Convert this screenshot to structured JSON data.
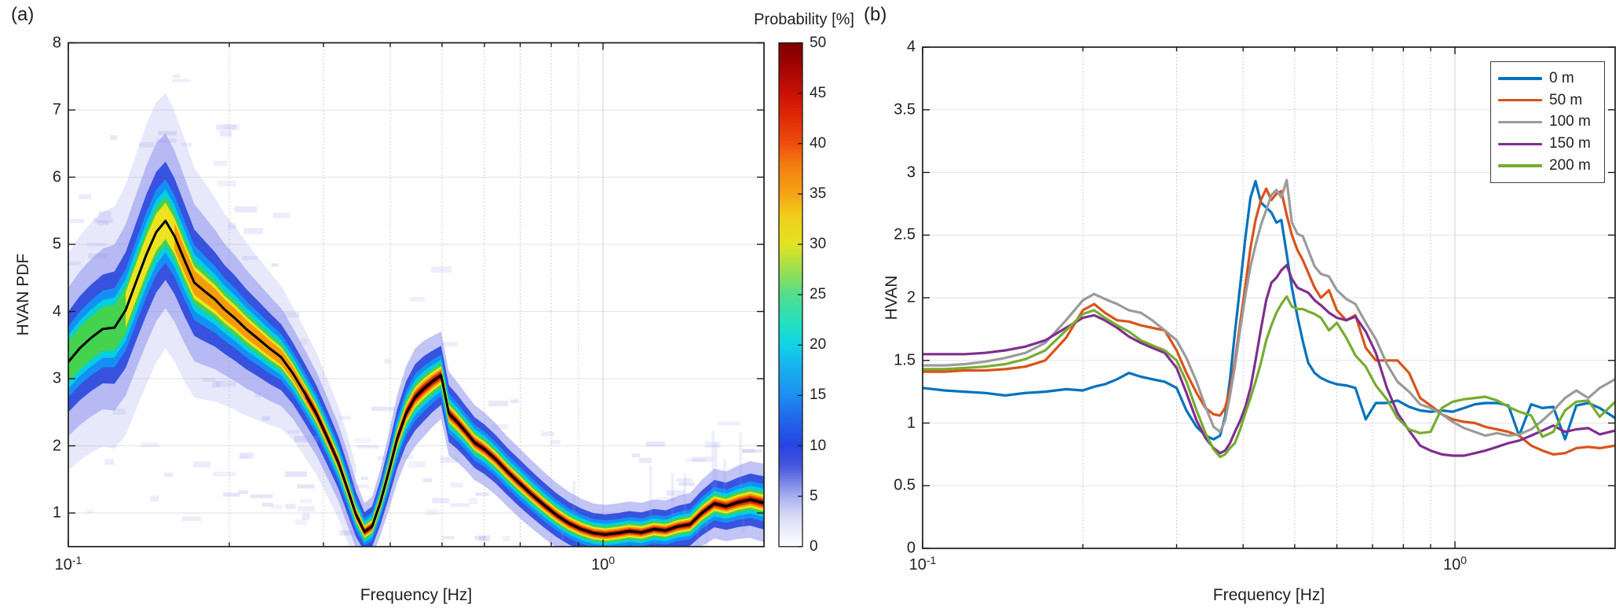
{
  "chart_data": [
    {
      "id": "a",
      "panel_label": "(a)",
      "type": "heatmap",
      "xlabel": "Frequency [Hz]",
      "ylabel": "HVAN PDF",
      "xscale": "log",
      "xlim": [
        0.1,
        2
      ],
      "ylim": [
        0.5,
        8
      ],
      "yticks": [
        1,
        2,
        3,
        4,
        5,
        6,
        7,
        8
      ],
      "xticks_major": [
        0.1,
        1
      ],
      "xticks_minor": [
        0.2,
        0.3,
        0.4,
        0.5,
        0.6,
        0.7,
        0.8,
        0.9
      ],
      "xtick_labels": [
        {
          "base": "10",
          "exp": "-1",
          "at": 0.1
        },
        {
          "base": "10",
          "exp": "0",
          "at": 1
        }
      ],
      "grid": true,
      "colorbar": {
        "title": "Probability [%]",
        "min": 0,
        "max": 50,
        "ticks": [
          0,
          5,
          10,
          15,
          20,
          25,
          30,
          35,
          40,
          45,
          50
        ],
        "gradient": [
          [
            0,
            "#ffffff"
          ],
          [
            3,
            "#d9dcf6"
          ],
          [
            5,
            "#a7aeee"
          ],
          [
            8,
            "#4656dd"
          ],
          [
            10,
            "#2743e2"
          ],
          [
            13,
            "#1f6ceb"
          ],
          [
            15,
            "#1e8ef2"
          ],
          [
            18,
            "#17b4ec"
          ],
          [
            20,
            "#10d4e6"
          ],
          [
            22,
            "#21dfc2"
          ],
          [
            25,
            "#53dd8d"
          ],
          [
            27,
            "#8ede5a"
          ],
          [
            30,
            "#e3e321"
          ],
          [
            33,
            "#f2cb1b"
          ],
          [
            35,
            "#f4a315"
          ],
          [
            38,
            "#f37b10"
          ],
          [
            40,
            "#ee4e0c"
          ],
          [
            43,
            "#dd2506"
          ],
          [
            45,
            "#c91105"
          ],
          [
            48,
            "#9c0303"
          ],
          [
            50,
            "#7c0000"
          ]
        ]
      },
      "median_curve": {
        "color": "#000000",
        "f": [
          0.1,
          0.105,
          0.11,
          0.116,
          0.122,
          0.128,
          0.134,
          0.14,
          0.146,
          0.152,
          0.158,
          0.165,
          0.172,
          0.18,
          0.188,
          0.196,
          0.205,
          0.215,
          0.226,
          0.238,
          0.25,
          0.263,
          0.277,
          0.291,
          0.306,
          0.32,
          0.333,
          0.345,
          0.358,
          0.37,
          0.383,
          0.397,
          0.412,
          0.428,
          0.445,
          0.462,
          0.48,
          0.498,
          0.515,
          0.533,
          0.552,
          0.575,
          0.6,
          0.63,
          0.662,
          0.697,
          0.735,
          0.775,
          0.818,
          0.862,
          0.91,
          0.96,
          1.01,
          1.065,
          1.12,
          1.18,
          1.245,
          1.31,
          1.38,
          1.455,
          1.53,
          1.615,
          1.7,
          1.79,
          1.885,
          2.0
        ],
        "v": [
          3.25,
          3.45,
          3.6,
          3.74,
          3.76,
          4.02,
          4.45,
          4.85,
          5.18,
          5.35,
          5.12,
          4.76,
          4.43,
          4.3,
          4.18,
          4.03,
          3.9,
          3.74,
          3.6,
          3.45,
          3.32,
          3.08,
          2.78,
          2.48,
          2.1,
          1.75,
          1.35,
          0.98,
          0.72,
          0.8,
          1.15,
          1.6,
          2.1,
          2.48,
          2.72,
          2.85,
          2.96,
          3.05,
          2.48,
          2.36,
          2.22,
          2.05,
          1.95,
          1.8,
          1.62,
          1.45,
          1.28,
          1.12,
          0.97,
          0.85,
          0.76,
          0.7,
          0.68,
          0.7,
          0.73,
          0.71,
          0.76,
          0.74,
          0.8,
          0.83,
          1.0,
          1.14,
          1.1,
          1.16,
          1.2,
          1.15
        ],
        "spread": [
          0.85,
          0.88,
          0.9,
          0.92,
          0.95,
          0.98,
          1.0,
          1.02,
          1.02,
          1.0,
          0.98,
          0.95,
          0.9,
          0.85,
          0.8,
          0.75,
          0.72,
          0.68,
          0.64,
          0.6,
          0.56,
          0.52,
          0.5,
          0.48,
          0.46,
          0.44,
          0.42,
          0.38,
          0.33,
          0.34,
          0.38,
          0.44,
          0.5,
          0.54,
          0.56,
          0.55,
          0.52,
          0.5,
          0.48,
          0.46,
          0.44,
          0.43,
          0.42,
          0.41,
          0.4,
          0.4,
          0.39,
          0.38,
          0.37,
          0.36,
          0.35,
          0.34,
          0.34,
          0.34,
          0.34,
          0.34,
          0.34,
          0.34,
          0.35,
          0.36,
          0.38,
          0.4,
          0.4,
          0.42,
          0.44,
          0.45
        ]
      },
      "density_layers": [
        {
          "color": "rgba(150,150,235,0.22)",
          "width_factor": 1.9,
          "fmin": 0.1,
          "fmax": 0.35
        },
        {
          "color": "rgba(132,138,236,0.50)",
          "width_factor": 1.3,
          "fmin": 0.1,
          "fmax": 2
        },
        {
          "color": "rgba(43,73,221,0.92)",
          "width_factor": 0.88,
          "fmin": 0.1,
          "fmax": 2
        },
        {
          "color": "#1490f5",
          "width_factor": 0.62,
          "fmin": 0.1,
          "fmax": 2
        },
        {
          "color": "#00cfe0",
          "width_factor": 0.47,
          "fmin": 0.1,
          "fmax": 2
        },
        {
          "color": "#44d24f",
          "width_factor": 0.36,
          "fmin": 0.1,
          "fmax": 2
        },
        {
          "color": "#ede41f",
          "width_factor": 0.27,
          "fmin": 0.125,
          "fmax": 2
        },
        {
          "color": "#f59b07",
          "width_factor": 0.2,
          "fmin": 0.155,
          "fmax": 2
        },
        {
          "color": "#e8350a",
          "width_factor": 0.135,
          "fmin": 0.265,
          "fmax": 2
        },
        {
          "color": "#8f1404",
          "width_factor": 0.075,
          "fmin": 0.285,
          "fmax": 2
        }
      ]
    },
    {
      "id": "b",
      "panel_label": "(b)",
      "type": "line",
      "xlabel": "Frequency [Hz]",
      "ylabel": "HVAN",
      "xscale": "log",
      "xlim": [
        0.1,
        2
      ],
      "ylim": [
        0,
        4
      ],
      "yticks": [
        0,
        0.5,
        1,
        1.5,
        2,
        2.5,
        3,
        3.5,
        4
      ],
      "xticks_major": [
        0.1,
        1
      ],
      "xticks_minor": [
        0.2,
        0.3,
        0.4,
        0.5,
        0.6,
        0.7,
        0.8,
        0.9
      ],
      "xtick_labels": [
        {
          "base": "10",
          "exp": "-1",
          "at": 0.1
        },
        {
          "base": "10",
          "exp": "0",
          "at": 1
        }
      ],
      "grid": true,
      "legend": {
        "position": "top-right",
        "entries": [
          {
            "label": "0 m",
            "color": "#0072BD"
          },
          {
            "label": "50 m",
            "color": "#D95319"
          },
          {
            "label": "100 m",
            "color": "#9B9B9B"
          },
          {
            "label": "150 m",
            "color": "#7E2F8E"
          },
          {
            "label": "200 m",
            "color": "#77AC30"
          }
        ]
      },
      "x": [
        0.1,
        0.11,
        0.12,
        0.131,
        0.143,
        0.156,
        0.17,
        0.186,
        0.2,
        0.21,
        0.22,
        0.232,
        0.244,
        0.257,
        0.27,
        0.285,
        0.3,
        0.313,
        0.327,
        0.34,
        0.352,
        0.362,
        0.37,
        0.378,
        0.386,
        0.395,
        0.404,
        0.413,
        0.422,
        0.432,
        0.442,
        0.452,
        0.462,
        0.472,
        0.483,
        0.494,
        0.506,
        0.518,
        0.53,
        0.545,
        0.56,
        0.58,
        0.6,
        0.625,
        0.65,
        0.68,
        0.71,
        0.745,
        0.78,
        0.82,
        0.86,
        0.9,
        0.945,
        0.99,
        1.04,
        1.09,
        1.14,
        1.2,
        1.26,
        1.32,
        1.39,
        1.46,
        1.53,
        1.61,
        1.69,
        1.78,
        1.87,
        2.0
      ],
      "series": [
        {
          "name": "0 m",
          "color": "#0072BD",
          "y": [
            1.28,
            1.26,
            1.25,
            1.24,
            1.22,
            1.24,
            1.25,
            1.27,
            1.26,
            1.29,
            1.31,
            1.35,
            1.4,
            1.37,
            1.35,
            1.33,
            1.28,
            1.1,
            0.97,
            0.9,
            0.87,
            0.9,
            1.05,
            1.35,
            1.72,
            2.1,
            2.48,
            2.8,
            2.93,
            2.76,
            2.72,
            2.68,
            2.6,
            2.62,
            2.35,
            2.08,
            1.85,
            1.65,
            1.48,
            1.4,
            1.36,
            1.33,
            1.31,
            1.3,
            1.28,
            1.03,
            1.16,
            1.16,
            1.18,
            1.13,
            1.1,
            1.09,
            1.1,
            1.09,
            1.12,
            1.15,
            1.16,
            1.16,
            1.14,
            0.9,
            1.15,
            1.12,
            1.13,
            0.87,
            1.14,
            1.16,
            1.12,
            1.04
          ]
        },
        {
          "name": "50 m",
          "color": "#D95319",
          "y": [
            1.41,
            1.41,
            1.42,
            1.42,
            1.43,
            1.45,
            1.5,
            1.68,
            1.9,
            1.95,
            1.88,
            1.82,
            1.81,
            1.78,
            1.76,
            1.74,
            1.58,
            1.4,
            1.24,
            1.12,
            1.07,
            1.06,
            1.12,
            1.27,
            1.49,
            1.8,
            2.1,
            2.4,
            2.62,
            2.78,
            2.87,
            2.78,
            2.83,
            2.85,
            2.66,
            2.5,
            2.38,
            2.3,
            2.2,
            2.08,
            2.0,
            2.06,
            1.9,
            1.82,
            1.86,
            1.6,
            1.5,
            1.5,
            1.5,
            1.4,
            1.2,
            1.14,
            1.07,
            1.03,
            1.01,
            1.0,
            0.97,
            0.95,
            0.93,
            0.9,
            0.82,
            0.78,
            0.75,
            0.76,
            0.8,
            0.81,
            0.8,
            0.82
          ]
        },
        {
          "name": "100 m",
          "color": "#9B9B9B",
          "y": [
            1.46,
            1.46,
            1.47,
            1.49,
            1.52,
            1.56,
            1.64,
            1.82,
            1.98,
            2.03,
            1.99,
            1.95,
            1.9,
            1.88,
            1.82,
            1.74,
            1.66,
            1.52,
            1.33,
            1.13,
            0.97,
            0.93,
            1.02,
            1.22,
            1.45,
            1.75,
            2.02,
            2.25,
            2.42,
            2.58,
            2.7,
            2.82,
            2.86,
            2.8,
            2.94,
            2.6,
            2.51,
            2.49,
            2.38,
            2.25,
            2.19,
            2.17,
            2.06,
            1.99,
            1.95,
            1.8,
            1.67,
            1.47,
            1.33,
            1.25,
            1.15,
            1.12,
            1.07,
            1.01,
            0.96,
            0.93,
            0.9,
            0.92,
            0.9,
            0.91,
            0.95,
            1.02,
            1.1,
            1.2,
            1.26,
            1.2,
            1.28,
            1.35
          ]
        },
        {
          "name": "150 m",
          "color": "#7E2F8E",
          "y": [
            1.55,
            1.55,
            1.55,
            1.56,
            1.58,
            1.61,
            1.66,
            1.76,
            1.84,
            1.86,
            1.82,
            1.76,
            1.69,
            1.64,
            1.6,
            1.56,
            1.44,
            1.24,
            1.02,
            0.88,
            0.8,
            0.76,
            0.78,
            0.84,
            0.93,
            1.02,
            1.13,
            1.28,
            1.5,
            1.75,
            1.98,
            2.12,
            2.16,
            2.22,
            2.26,
            2.15,
            2.08,
            2.06,
            2.04,
            1.98,
            1.94,
            1.88,
            1.84,
            1.82,
            1.85,
            1.73,
            1.56,
            1.28,
            1.08,
            0.94,
            0.82,
            0.78,
            0.75,
            0.74,
            0.74,
            0.76,
            0.78,
            0.81,
            0.84,
            0.86,
            0.9,
            0.94,
            0.98,
            0.93,
            0.95,
            0.96,
            0.91,
            0.94
          ]
        },
        {
          "name": "200 m",
          "color": "#77AC30",
          "y": [
            1.43,
            1.43,
            1.44,
            1.45,
            1.47,
            1.51,
            1.58,
            1.74,
            1.87,
            1.9,
            1.84,
            1.78,
            1.73,
            1.66,
            1.62,
            1.58,
            1.5,
            1.33,
            1.1,
            0.92,
            0.79,
            0.73,
            0.75,
            0.8,
            0.84,
            0.95,
            1.08,
            1.2,
            1.33,
            1.48,
            1.66,
            1.78,
            1.88,
            1.95,
            2.01,
            1.93,
            1.91,
            1.91,
            1.89,
            1.87,
            1.84,
            1.74,
            1.8,
            1.68,
            1.54,
            1.45,
            1.3,
            1.19,
            1.04,
            0.95,
            0.92,
            0.93,
            1.12,
            1.17,
            1.19,
            1.2,
            1.21,
            1.18,
            1.13,
            1.09,
            1.06,
            0.89,
            0.93,
            1.1,
            1.17,
            1.18,
            1.05,
            1.17
          ]
        }
      ]
    }
  ]
}
